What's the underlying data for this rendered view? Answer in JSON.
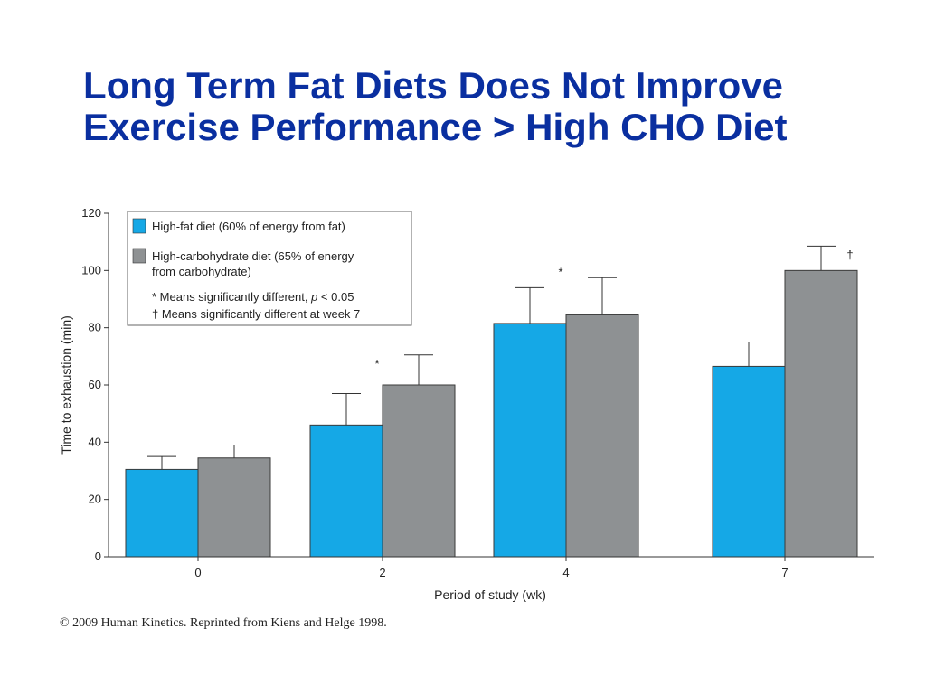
{
  "title": {
    "line1": "Long Term Fat Diets Does Not Improve",
    "line2": "Exercise Performance > High CHO Diet"
  },
  "colors": {
    "title": "#0a2fa0",
    "high_fat": "#15a8e6",
    "high_cho": "#8e9193"
  },
  "chart_data": {
    "type": "bar",
    "xlabel": "Period of study (wk)",
    "ylabel": "Time to exhaustion (min)",
    "ylim": [
      0,
      120
    ],
    "yticks": [
      0,
      20,
      40,
      60,
      80,
      100,
      120
    ],
    "categories": [
      "0",
      "2",
      "4",
      "7"
    ],
    "series": [
      {
        "name": "High-fat diet (60% of energy from fat)",
        "color": "#15a8e6",
        "values": [
          30.5,
          46,
          81.5,
          66.5
        ],
        "error_upper": [
          35,
          57,
          94,
          75
        ]
      },
      {
        "name": "High-carbohydrate diet (65% of energy from carbohydrate)",
        "color": "#8e9193",
        "values": [
          34.5,
          60,
          84.5,
          100
        ],
        "error_upper": [
          39,
          70.5,
          97.5,
          108.5
        ]
      }
    ],
    "annotations": [
      {
        "text": "*",
        "category": "2",
        "y": 66
      },
      {
        "text": "*",
        "category": "4",
        "y": 98
      },
      {
        "text": "†",
        "category": "7",
        "y": 104
      }
    ],
    "legend": {
      "placement": "top-left",
      "entries": [
        "High-fat diet (60% of energy from fat)",
        "High-carbohydrate diet (65% of energy",
        "from carbohydrate)"
      ],
      "note_1_prefix": "* Means significantly different, ",
      "note_1_italic": "p",
      "note_1_suffix": " < 0.05",
      "note_2": "† Means significantly different at week 7"
    }
  },
  "credit": "© 2009 Human Kinetics. Reprinted from Kiens and Helge 1998."
}
